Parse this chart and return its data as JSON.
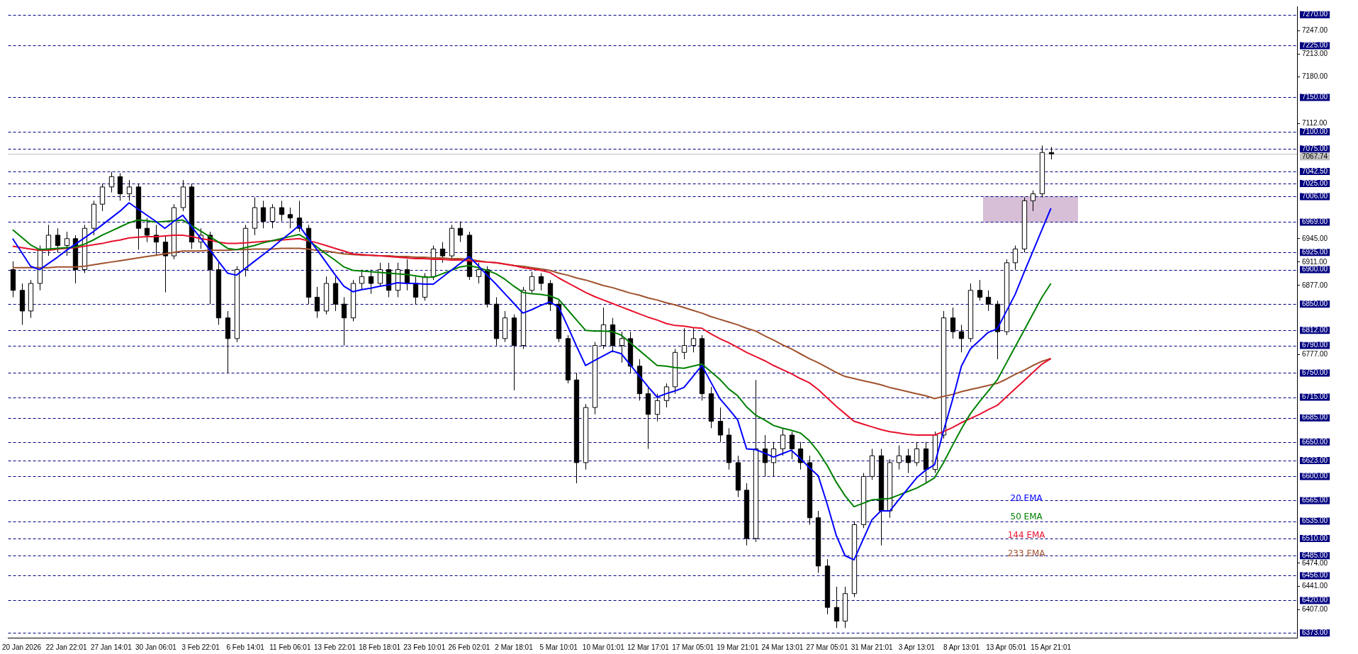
{
  "chart_data": {
    "type": "candlestick",
    "categories": [
      null,
      "20 Jan 2026",
      null,
      null,
      null,
      null,
      "22 Jan 22:01",
      null,
      null,
      null,
      null,
      "27 Jan 14:01",
      null,
      null,
      null,
      null,
      "30 Jan 06:01",
      null,
      null,
      null,
      null,
      "3 Feb 22:01",
      null,
      null,
      null,
      null,
      "6 Feb 14:01",
      null,
      null,
      null,
      null,
      "11 Feb 06:01",
      null,
      null,
      null,
      null,
      "13 Feb 22:01",
      null,
      null,
      null,
      null,
      "18 Feb 18:01",
      null,
      null,
      null,
      null,
      "23 Feb 10:01",
      null,
      null,
      null,
      null,
      "26 Feb 02:01",
      null,
      null,
      null,
      null,
      "2 Mar 18:01",
      null,
      null,
      null,
      null,
      "5 Mar 10:01",
      null,
      null,
      null,
      null,
      "10 Mar 01:01",
      null,
      null,
      null,
      null,
      "12 Mar 17:01",
      null,
      null,
      null,
      null,
      "17 Mar 05:01",
      null,
      null,
      null,
      null,
      "19 Mar 21:01",
      null,
      null,
      null,
      null,
      "24 Mar 13:01",
      null,
      null,
      null,
      null,
      "27 Mar 05:01",
      null,
      null,
      null,
      null,
      "31 Mar 21:01",
      null,
      null,
      null,
      null,
      "3 Apr 13:01",
      null,
      null,
      null,
      null,
      "8 Apr 13:01",
      null,
      null,
      null,
      null,
      "13 Apr 05:01",
      null,
      null,
      null,
      null,
      "15 Apr 21:01"
    ],
    "ohlc": [
      [
        6900,
        6912,
        6860,
        6870
      ],
      [
        6870,
        6880,
        6820,
        6840
      ],
      [
        6840,
        6885,
        6830,
        6880
      ],
      [
        6880,
        6935,
        6870,
        6930
      ],
      [
        6930,
        6965,
        6920,
        6950
      ],
      [
        6950,
        6960,
        6925,
        6935
      ],
      [
        6935,
        6955,
        6920,
        6945
      ],
      [
        6945,
        6950,
        6880,
        6900
      ],
      [
        6900,
        6965,
        6895,
        6960
      ],
      [
        6960,
        7000,
        6950,
        6995
      ],
      [
        6995,
        7025,
        6985,
        7020
      ],
      [
        7020,
        7042,
        7012,
        7035
      ],
      [
        7035,
        7040,
        7000,
        7010
      ],
      [
        7010,
        7030,
        7000,
        7020
      ],
      [
        7020,
        7025,
        6929,
        6960
      ],
      [
        6960,
        6975,
        6940,
        6950
      ],
      [
        6950,
        6965,
        6920,
        6940
      ],
      [
        6940,
        6950,
        6867,
        6920
      ],
      [
        6920,
        6995,
        6915,
        6990
      ],
      [
        6990,
        7030,
        6985,
        7020
      ],
      [
        7020,
        7025,
        6930,
        6940
      ],
      [
        6940,
        6960,
        6930,
        6950
      ],
      [
        6950,
        6955,
        6850,
        6900
      ],
      [
        6900,
        6910,
        6820,
        6830
      ],
      [
        6830,
        6840,
        6750,
        6800
      ],
      [
        6800,
        6905,
        6795,
        6900
      ],
      [
        6900,
        6965,
        6890,
        6960
      ],
      [
        6960,
        7005,
        6950,
        6990
      ],
      [
        6990,
        7000,
        6960,
        6970
      ],
      [
        6970,
        6995,
        6960,
        6990
      ],
      [
        6990,
        7000,
        6970,
        6980
      ],
      [
        6980,
        6990,
        6960,
        6975
      ],
      [
        6975,
        7000,
        6955,
        6960
      ],
      [
        6960,
        6965,
        6850,
        6860
      ],
      [
        6860,
        6875,
        6830,
        6840
      ],
      [
        6840,
        6890,
        6835,
        6880
      ],
      [
        6880,
        6890,
        6840,
        6850
      ],
      [
        6850,
        6860,
        6790,
        6830
      ],
      [
        6830,
        6885,
        6825,
        6880
      ],
      [
        6880,
        6900,
        6870,
        6890
      ],
      [
        6890,
        6900,
        6865,
        6880
      ],
      [
        6880,
        6910,
        6875,
        6900
      ],
      [
        6900,
        6910,
        6860,
        6870
      ],
      [
        6870,
        6910,
        6860,
        6900
      ],
      [
        6900,
        6915,
        6870,
        6880
      ],
      [
        6880,
        6890,
        6850,
        6860
      ],
      [
        6860,
        6895,
        6855,
        6890
      ],
      [
        6890,
        6935,
        6885,
        6930
      ],
      [
        6930,
        6940,
        6910,
        6920
      ],
      [
        6920,
        6965,
        6915,
        6960
      ],
      [
        6960,
        6970,
        6940,
        6950
      ],
      [
        6950,
        6955,
        6885,
        6890
      ],
      [
        6890,
        6910,
        6880,
        6900
      ],
      [
        6900,
        6905,
        6845,
        6850
      ],
      [
        6850,
        6860,
        6790,
        6800
      ],
      [
        6800,
        6840,
        6795,
        6830
      ],
      [
        6830,
        6835,
        6725,
        6790
      ],
      [
        6790,
        6875,
        6785,
        6870
      ],
      [
        6870,
        6897,
        6865,
        6890
      ],
      [
        6890,
        6895,
        6870,
        6880
      ],
      [
        6880,
        6885,
        6840,
        6850
      ],
      [
        6850,
        6855,
        6795,
        6800
      ],
      [
        6800,
        6805,
        6735,
        6740
      ],
      [
        6740,
        6750,
        6590,
        6620
      ],
      [
        6620,
        6705,
        6610,
        6700
      ],
      [
        6700,
        6795,
        6690,
        6790
      ],
      [
        6790,
        6845,
        6785,
        6820
      ],
      [
        6820,
        6830,
        6780,
        6790
      ],
      [
        6790,
        6810,
        6765,
        6800
      ],
      [
        6800,
        6810,
        6750,
        6760
      ],
      [
        6760,
        6770,
        6710,
        6720
      ],
      [
        6720,
        6730,
        6640,
        6690
      ],
      [
        6690,
        6720,
        6680,
        6710
      ],
      [
        6710,
        6735,
        6700,
        6730
      ],
      [
        6730,
        6785,
        6720,
        6780
      ],
      [
        6780,
        6815,
        6770,
        6790
      ],
      [
        6790,
        6815,
        6780,
        6800
      ],
      [
        6800,
        6805,
        6710,
        6720
      ],
      [
        6720,
        6730,
        6670,
        6680
      ],
      [
        6680,
        6700,
        6650,
        6660
      ],
      [
        6660,
        6670,
        6610,
        6620
      ],
      [
        6620,
        6630,
        6570,
        6580
      ],
      [
        6580,
        6590,
        6500,
        6510
      ],
      [
        6510,
        6740,
        6505,
        6640
      ],
      [
        6640,
        6660,
        6600,
        6620
      ],
      [
        6620,
        6650,
        6600,
        6640
      ],
      [
        6640,
        6670,
        6630,
        6660
      ],
      [
        6660,
        6665,
        6625,
        6640
      ],
      [
        6640,
        6650,
        6610,
        6620
      ],
      [
        6620,
        6630,
        6530,
        6540
      ],
      [
        6540,
        6550,
        6460,
        6470
      ],
      [
        6470,
        6480,
        6400,
        6410
      ],
      [
        6410,
        6440,
        6380,
        6390
      ],
      [
        6390,
        6440,
        6380,
        6430
      ],
      [
        6430,
        6535,
        6425,
        6530
      ],
      [
        6530,
        6605,
        6525,
        6600
      ],
      [
        6600,
        6640,
        6595,
        6630
      ],
      [
        6630,
        6640,
        6500,
        6550
      ],
      [
        6550,
        6625,
        6540,
        6620
      ],
      [
        6620,
        6645,
        6610,
        6630
      ],
      [
        6630,
        6640,
        6605,
        6620
      ],
      [
        6620,
        6650,
        6615,
        6640
      ],
      [
        6640,
        6650,
        6590,
        6610
      ],
      [
        6610,
        6665,
        6605,
        6660
      ],
      [
        6660,
        6840,
        6655,
        6830
      ],
      [
        6830,
        6845,
        6800,
        6810
      ],
      [
        6810,
        6820,
        6780,
        6800
      ],
      [
        6800,
        6880,
        6795,
        6870
      ],
      [
        6870,
        6885,
        6855,
        6860
      ],
      [
        6860,
        6870,
        6840,
        6850
      ],
      [
        6850,
        6855,
        6770,
        6810
      ],
      [
        6810,
        6915,
        6805,
        6910
      ],
      [
        6910,
        6935,
        6900,
        6930
      ],
      [
        6930,
        7005,
        6925,
        7000
      ],
      [
        7000,
        7015,
        6985,
        7010
      ],
      [
        7010,
        7080,
        7005,
        7070
      ],
      [
        7070,
        7078,
        7060,
        7068
      ]
    ],
    "series": [
      {
        "name": "20 EMA",
        "type": "line",
        "color": "#0000ff",
        "values": [
          6945,
          6925,
          6905,
          6900,
          6909,
          6918,
          6928,
          6937,
          6946,
          6955,
          6965,
          6975,
          6985,
          6997,
          6988,
          6979,
          6970,
          6960,
          6970,
          6979,
          6962,
          6946,
          6929,
          6912,
          6895,
          6892,
          6902,
          6912,
          6922,
          6932,
          6943,
          6953,
          6964,
          6946,
          6929,
          6911,
          6893,
          6876,
          6868,
          6871,
          6873,
          6876,
          6878,
          6881,
          6880,
          6880,
          6879,
          6879,
          6889,
          6899,
          6909,
          6919,
          6906,
          6892,
          6879,
          6865,
          6851,
          6837,
          6842,
          6848,
          6853,
          6846,
          6818,
          6789,
          6761,
          6768,
          6775,
          6782,
          6778,
          6762,
          6746,
          6730,
          6715,
          6720,
          6724,
          6729,
          6745,
          6761,
          6737,
          6713,
          6698,
          6682,
          6640,
          6639,
          6634,
          6628,
          6633,
          6638,
          6626,
          6613,
          6601,
          6560,
          6515,
          6485,
          6479,
          6508,
          6537,
          6550,
          6550,
          6566,
          6582,
          6598,
          6609,
          6617,
          6666,
          6711,
          6760,
          6785,
          6797,
          6809,
          6814,
          6839,
          6864,
          6896,
          6927,
          6958,
          6989
        ]
      },
      {
        "name": "50 EMA",
        "type": "line",
        "color": "#008000",
        "values": [
          6958,
          6947,
          6936,
          6929,
          6930,
          6931,
          6932,
          6933,
          6937,
          6943,
          6950,
          6956,
          6962,
          6968,
          6972,
          6971,
          6969,
          6970,
          6971,
          6972,
          6964,
          6956,
          6948,
          6940,
          6931,
          6929,
          6932,
          6935,
          6939,
          6942,
          6945,
          6948,
          6951,
          6943,
          6933,
          6923,
          6914,
          6904,
          6899,
          6898,
          6897,
          6896,
          6895,
          6894,
          6893,
          6891,
          6889,
          6889,
          6894,
          6899,
          6904,
          6906,
          6903,
          6899,
          6894,
          6886,
          6876,
          6867,
          6865,
          6864,
          6862,
          6857,
          6842,
          6827,
          6812,
          6811,
          6811,
          6810,
          6805,
          6794,
          6783,
          6772,
          6761,
          6760,
          6758,
          6757,
          6760,
          6763,
          6752,
          6741,
          6727,
          6717,
          6701,
          6689,
          6682,
          6674,
          6670,
          6667,
          6663,
          6652,
          6636,
          6616,
          6592,
          6572,
          6556,
          6561,
          6566,
          6567,
          6568,
          6573,
          6578,
          6583,
          6590,
          6598,
          6620,
          6645,
          6669,
          6691,
          6708,
          6724,
          6740,
          6764,
          6788,
          6812,
          6836,
          6860,
          6880
        ]
      },
      {
        "name": "144 EMA",
        "type": "line",
        "color": "#e8112d",
        "values": [
          6934,
          6932,
          6930,
          6928,
          6928,
          6930,
          6931,
          6932,
          6934,
          6936,
          6938,
          6941,
          6943,
          6946,
          6947,
          6948,
          6948,
          6949,
          6950,
          6950,
          6948,
          6945,
          6943,
          6940,
          6938,
          6938,
          6939,
          6940,
          6941,
          6942,
          6943,
          6944,
          6945,
          6942,
          6939,
          6935,
          6931,
          6927,
          6923,
          6922,
          6921,
          6920,
          6919,
          6918,
          6917,
          6916,
          6916,
          6915,
          6915,
          6914,
          6914,
          6913,
          6912,
          6911,
          6910,
          6908,
          6906,
          6903,
          6901,
          6899,
          6896,
          6888,
          6881,
          6874,
          6867,
          6861,
          6856,
          6851,
          6846,
          6841,
          6836,
          6831,
          6827,
          6822,
          6819,
          6818,
          6816,
          6815,
          6807,
          6800,
          6794,
          6787,
          6780,
          6774,
          6768,
          6761,
          6755,
          6749,
          6742,
          6736,
          6726,
          6714,
          6702,
          6691,
          6680,
          6676,
          6672,
          6668,
          6665,
          6663,
          6661,
          6660,
          6660,
          6660,
          6665,
          6671,
          6678,
          6684,
          6690,
          6697,
          6703,
          6715,
          6727,
          6739,
          6751,
          6763,
          6771
        ]
      },
      {
        "name": "233 EMA",
        "type": "line",
        "color": "#a0522d",
        "values": [
          6903,
          6903,
          6903,
          6903,
          6903,
          6904,
          6904,
          6904,
          6905,
          6907,
          6909,
          6911,
          6913,
          6915,
          6917,
          6919,
          6921,
          6923,
          6925,
          6927,
          6927,
          6927,
          6928,
          6928,
          6928,
          6929,
          6929,
          6930,
          6930,
          6930,
          6931,
          6931,
          6931,
          6930,
          6928,
          6927,
          6925,
          6923,
          6922,
          6921,
          6921,
          6920,
          6920,
          6919,
          6919,
          6918,
          6918,
          6917,
          6917,
          6916,
          6916,
          6915,
          6913,
          6911,
          6910,
          6908,
          6906,
          6905,
          6903,
          6901,
          6899,
          6895,
          6892,
          6888,
          6885,
          6881,
          6877,
          6874,
          6870,
          6866,
          6863,
          6859,
          6856,
          6852,
          6849,
          6845,
          6841,
          6837,
          6832,
          6828,
          6824,
          6820,
          6815,
          6811,
          6804,
          6798,
          6791,
          6785,
          6778,
          6771,
          6765,
          6758,
          6751,
          6745,
          6742,
          6739,
          6736,
          6733,
          6729,
          6726,
          6723,
          6720,
          6717,
          6713,
          6716,
          6719,
          6723,
          6726,
          6729,
          6732,
          6735,
          6741,
          6748,
          6754,
          6761,
          6767,
          6771
        ]
      }
    ],
    "ylim": [
      6366,
      7282
    ],
    "yticks": [
      {
        "value": 7247,
        "label": "7247.00"
      },
      {
        "value": 7213,
        "label": "7213.00"
      },
      {
        "value": 7180,
        "label": "7180.00"
      },
      {
        "value": 7112,
        "label": "7112.00"
      },
      {
        "value": 6945,
        "label": "6945.00"
      },
      {
        "value": 6911,
        "label": "6911.00"
      },
      {
        "value": 6877,
        "label": "6877.00"
      },
      {
        "value": 6777,
        "label": "6777.00"
      },
      {
        "value": 6474,
        "label": "6474.00"
      },
      {
        "value": 6441,
        "label": "6441.00"
      },
      {
        "value": 6407,
        "label": "6407.00"
      }
    ],
    "ref_lines": [
      {
        "axis": "y",
        "value": 7270,
        "label": "7270.00",
        "color": "#000080",
        "line_style": "dashed"
      },
      {
        "axis": "y",
        "value": 7225,
        "label": "7225.00",
        "color": "#000080",
        "line_style": "dashed"
      },
      {
        "axis": "y",
        "value": 7150,
        "label": "7150.00",
        "color": "#000080",
        "line_style": "dashed"
      },
      {
        "axis": "y",
        "value": 7100,
        "label": "7100.00",
        "color": "#000080",
        "line_style": "dashed"
      },
      {
        "axis": "y",
        "value": 7075,
        "label": "7075.00",
        "color": "#000080",
        "line_style": "dashed"
      },
      {
        "axis": "y",
        "value": 7067.74,
        "label": "7067.74",
        "color": "#c0c0c0",
        "line_style": "solid"
      },
      {
        "axis": "y",
        "value": 7042.5,
        "label": "7042.50",
        "color": "#000080",
        "line_style": "dashed"
      },
      {
        "axis": "y",
        "value": 7025,
        "label": "7025.00",
        "color": "#000080",
        "line_style": "dashed"
      },
      {
        "axis": "y",
        "value": 7006,
        "label": "7006.00",
        "color": "#000080",
        "line_style": "dashed"
      },
      {
        "axis": "y",
        "value": 6969,
        "label": "6969.00",
        "color": "#000080",
        "line_style": "dashed"
      },
      {
        "axis": "y",
        "value": 6925,
        "label": "6925.00",
        "color": "#000080",
        "line_style": "dashed"
      },
      {
        "axis": "y",
        "value": 6900,
        "label": "6900.00",
        "color": "#000080",
        "line_style": "dashed"
      },
      {
        "axis": "y",
        "value": 6850,
        "label": "6850.00",
        "color": "#000080",
        "line_style": "dashed"
      },
      {
        "axis": "y",
        "value": 6812,
        "label": "6812.00",
        "color": "#000080",
        "line_style": "dashed"
      },
      {
        "axis": "y",
        "value": 6790,
        "label": "6790.00",
        "color": "#000080",
        "line_style": "dashed"
      },
      {
        "axis": "y",
        "value": 6750,
        "label": "6750.00",
        "color": "#000080",
        "line_style": "dashed"
      },
      {
        "axis": "y",
        "value": 6715,
        "label": "6715.00",
        "color": "#000080",
        "line_style": "dashed"
      },
      {
        "axis": "y",
        "value": 6685,
        "label": "6685.00",
        "color": "#000080",
        "line_style": "dashed"
      },
      {
        "axis": "y",
        "value": 6650,
        "label": "6650.00",
        "color": "#000080",
        "line_style": "dashed"
      },
      {
        "axis": "y",
        "value": 6623,
        "label": "6623.00",
        "color": "#000080",
        "line_style": "dashed"
      },
      {
        "axis": "y",
        "value": 6600,
        "label": "6600.00",
        "color": "#000080",
        "line_style": "dashed"
      },
      {
        "axis": "y",
        "value": 6565,
        "label": "6565.00",
        "color": "#000080",
        "line_style": "dashed"
      },
      {
        "axis": "y",
        "value": 6535,
        "label": "6535.00",
        "color": "#000080",
        "line_style": "dashed"
      },
      {
        "axis": "y",
        "value": 6510,
        "label": "6510.00",
        "color": "#000080",
        "line_style": "dashed"
      },
      {
        "axis": "y",
        "value": 6485,
        "label": "6485.00",
        "color": "#000080",
        "line_style": "dashed"
      },
      {
        "axis": "y",
        "value": 6456,
        "label": "6456.00",
        "color": "#000080",
        "line_style": "dashed"
      },
      {
        "axis": "y",
        "value": 6420,
        "label": "6420.00",
        "color": "#000080",
        "line_style": "dashed"
      },
      {
        "axis": "y",
        "value": 6373,
        "label": "6373.00",
        "color": "#000080",
        "line_style": "dashed"
      }
    ],
    "legend": "bottom right",
    "grid": false,
    "marker": "none",
    "line_style": "solid"
  }
}
